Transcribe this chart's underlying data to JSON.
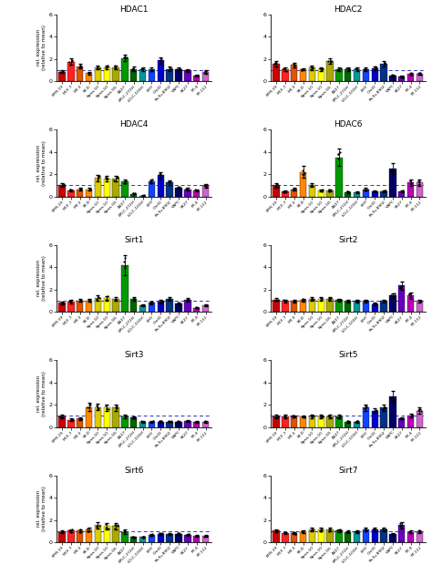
{
  "cell_lines": [
    "EFM-19",
    "MCF-7",
    "MT-3",
    "SK-D",
    "Kpna-10",
    "Kpna-10",
    "Kpna-G5",
    "A427",
    "EPLC-272H",
    "LCLC-103H",
    "BHY",
    "OmIO",
    "Pa-Tu-8902",
    "YAPC",
    "SK27",
    "RT-4",
    "RT-112"
  ],
  "bar_colors": [
    "#cc0000",
    "#ff2222",
    "#dd5500",
    "#ff8800",
    "#ddcc00",
    "#ffff00",
    "#aaaa00",
    "#009900",
    "#006600",
    "#009999",
    "#1144ff",
    "#0000cc",
    "#003388",
    "#000066",
    "#6600bb",
    "#bb00bb",
    "#cc66cc"
  ],
  "subplot_titles": [
    "HDAC1",
    "HDAC2",
    "HDAC4",
    "HDAC6",
    "Sirt1",
    "Sirt2",
    "Sirt3",
    "Sirt5",
    "Sirt6",
    "Sirt7"
  ],
  "HDAC1": [
    0.85,
    1.75,
    1.35,
    0.7,
    1.25,
    1.25,
    1.25,
    2.05,
    1.1,
    1.05,
    1.05,
    1.85,
    1.1,
    1.1,
    0.95,
    0.5,
    0.8
  ],
  "HDAC1_err": [
    0.12,
    0.3,
    0.2,
    0.1,
    0.18,
    0.18,
    0.18,
    0.28,
    0.18,
    0.18,
    0.18,
    0.28,
    0.18,
    0.12,
    0.1,
    0.08,
    0.18
  ],
  "HDAC2": [
    1.55,
    1.05,
    1.45,
    1.05,
    1.2,
    1.05,
    1.8,
    1.05,
    1.05,
    1.05,
    1.05,
    1.15,
    1.55,
    0.5,
    0.38,
    0.65,
    0.65
  ],
  "HDAC2_err": [
    0.22,
    0.15,
    0.22,
    0.1,
    0.18,
    0.15,
    0.28,
    0.15,
    0.15,
    0.15,
    0.15,
    0.18,
    0.22,
    0.1,
    0.08,
    0.1,
    0.1
  ],
  "HDAC4": [
    1.0,
    0.55,
    0.65,
    0.65,
    1.65,
    1.6,
    1.6,
    1.35,
    0.25,
    0.08,
    1.35,
    1.9,
    1.25,
    0.8,
    0.65,
    0.55,
    0.95
  ],
  "HDAC4_err": [
    0.15,
    0.1,
    0.1,
    0.1,
    0.28,
    0.22,
    0.22,
    0.2,
    0.05,
    0.02,
    0.2,
    0.28,
    0.2,
    0.1,
    0.1,
    0.08,
    0.18
  ],
  "HDAC6": [
    1.0,
    0.45,
    0.65,
    2.2,
    1.05,
    0.55,
    0.55,
    3.5,
    0.38,
    0.38,
    0.65,
    0.48,
    0.48,
    2.5,
    0.48,
    1.25,
    1.25
  ],
  "HDAC6_err": [
    0.18,
    0.08,
    0.1,
    0.55,
    0.18,
    0.1,
    0.1,
    0.75,
    0.08,
    0.05,
    0.1,
    0.08,
    0.08,
    0.48,
    0.08,
    0.28,
    0.28
  ],
  "Sirt1": [
    0.8,
    0.9,
    1.0,
    1.0,
    1.25,
    1.2,
    1.15,
    4.2,
    1.15,
    0.55,
    0.8,
    0.9,
    1.15,
    0.75,
    1.05,
    0.35,
    0.55
  ],
  "Sirt1_err": [
    0.1,
    0.15,
    0.12,
    0.12,
    0.22,
    0.2,
    0.18,
    0.9,
    0.18,
    0.08,
    0.12,
    0.15,
    0.18,
    0.1,
    0.15,
    0.05,
    0.08
  ],
  "Sirt2": [
    1.1,
    0.95,
    0.95,
    1.05,
    1.15,
    1.15,
    1.15,
    1.05,
    0.95,
    0.95,
    0.95,
    0.7,
    0.95,
    1.45,
    2.35,
    1.45,
    0.95
  ],
  "Sirt2_err": [
    0.15,
    0.12,
    0.1,
    0.14,
    0.18,
    0.18,
    0.18,
    0.14,
    0.1,
    0.1,
    0.1,
    0.1,
    0.1,
    0.22,
    0.38,
    0.28,
    0.14
  ],
  "Sirt3": [
    0.95,
    0.65,
    0.75,
    1.8,
    1.8,
    1.75,
    1.75,
    0.95,
    0.85,
    0.48,
    0.48,
    0.48,
    0.48,
    0.48,
    0.55,
    0.48,
    0.48
  ],
  "Sirt3_err": [
    0.14,
    0.1,
    0.1,
    0.38,
    0.28,
    0.28,
    0.28,
    0.18,
    0.1,
    0.07,
    0.07,
    0.07,
    0.05,
    0.07,
    0.07,
    0.07,
    0.07
  ],
  "Sirt5": [
    0.95,
    0.95,
    0.95,
    0.95,
    0.95,
    0.95,
    0.95,
    0.95,
    0.48,
    0.48,
    1.75,
    1.45,
    1.75,
    2.75,
    0.78,
    1.05,
    1.45
  ],
  "Sirt5_err": [
    0.14,
    0.14,
    0.1,
    0.1,
    0.14,
    0.14,
    0.14,
    0.18,
    0.07,
    0.07,
    0.28,
    0.2,
    0.28,
    0.48,
    0.1,
    0.18,
    0.28
  ],
  "Sirt6": [
    0.95,
    1.05,
    1.05,
    1.15,
    1.55,
    1.45,
    1.45,
    0.95,
    0.48,
    0.48,
    0.68,
    0.75,
    0.75,
    0.75,
    0.68,
    0.58,
    0.58
  ],
  "Sirt6_err": [
    0.14,
    0.14,
    0.14,
    0.18,
    0.28,
    0.28,
    0.28,
    0.18,
    0.05,
    0.05,
    0.1,
    0.1,
    0.1,
    0.1,
    0.1,
    0.07,
    0.07
  ],
  "Sirt7": [
    1.05,
    0.85,
    0.85,
    0.95,
    1.15,
    1.15,
    1.15,
    1.05,
    0.95,
    0.95,
    1.15,
    1.15,
    1.15,
    0.75,
    1.55,
    0.95,
    0.95
  ],
  "Sirt7_err": [
    0.14,
    0.1,
    0.1,
    0.1,
    0.18,
    0.18,
    0.18,
    0.14,
    0.1,
    0.1,
    0.14,
    0.14,
    0.14,
    0.1,
    0.28,
    0.14,
    0.14
  ],
  "ylim": [
    0,
    6
  ],
  "yticks": [
    0,
    2,
    4,
    6
  ],
  "ylabel": "rel. expression\n(relative to mean)",
  "refline": 1.0
}
